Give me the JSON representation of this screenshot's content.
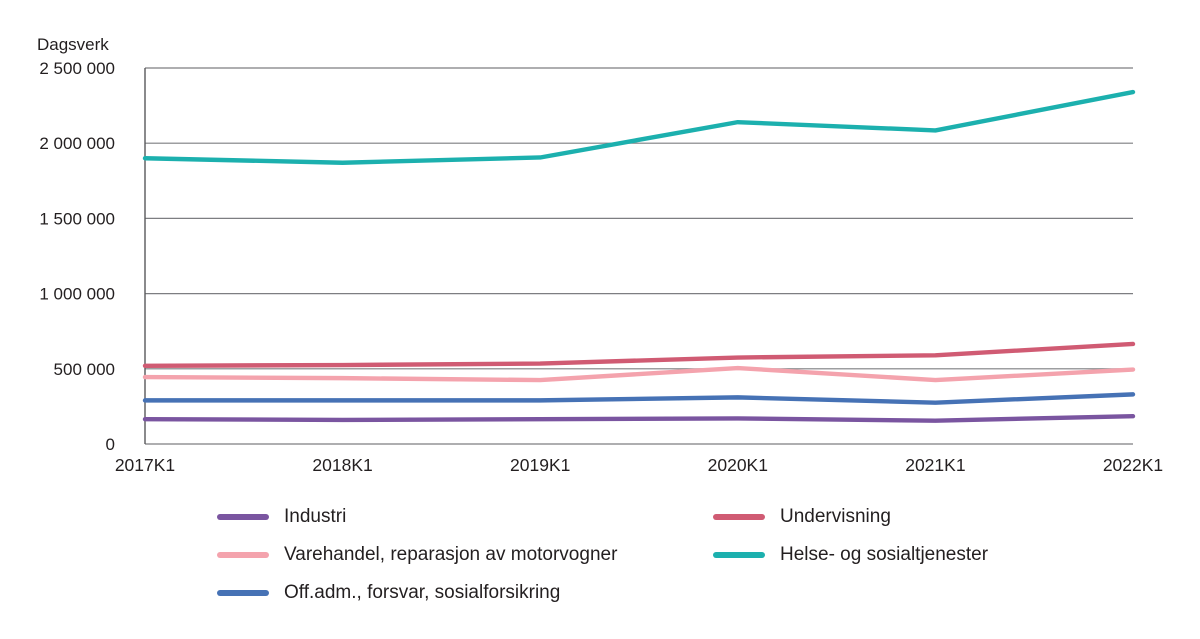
{
  "chart_data": {
    "type": "line",
    "title": "",
    "ylabel": "Dagsverk",
    "xlabel": "",
    "categories": [
      "2017K1",
      "2018K1",
      "2019K1",
      "2020K1",
      "2021K1",
      "2022K1"
    ],
    "ylim": [
      0,
      2500000
    ],
    "grid": true,
    "legend_position": "bottom, two columns",
    "yticks": [
      {
        "value": 0,
        "label": "0"
      },
      {
        "value": 500000,
        "label": "500 000"
      },
      {
        "value": 1000000,
        "label": "1 000 000"
      },
      {
        "value": 1500000,
        "label": "1 500 000"
      },
      {
        "value": 2000000,
        "label": "2 000 000"
      },
      {
        "value": 2500000,
        "label": "2 500 000"
      }
    ],
    "series": [
      {
        "name": "Industri",
        "color": "#7a55a0",
        "values": [
          165000,
          160000,
          165000,
          170000,
          155000,
          185000
        ]
      },
      {
        "name": "Varehandel, reparasjon av motorvogner",
        "color": "#f4a3ad",
        "values": [
          445000,
          438000,
          425000,
          505000,
          425000,
          495000
        ]
      },
      {
        "name": "Off.adm., forsvar, sosialforsikring",
        "color": "#4672b5",
        "values": [
          290000,
          290000,
          290000,
          310000,
          275000,
          330000
        ]
      },
      {
        "name": "Undervisning",
        "color": "#d05b73",
        "values": [
          520000,
          525000,
          535000,
          575000,
          590000,
          665000
        ]
      },
      {
        "name": "Helse- og sosialtjenester",
        "color": "#1cb0ae",
        "values": [
          1900000,
          1870000,
          1905000,
          2140000,
          2085000,
          2340000
        ]
      }
    ],
    "legend_columns": [
      [
        0,
        1,
        2
      ],
      [
        3,
        4
      ]
    ]
  },
  "colors": {
    "background": "#ffffff",
    "axis": "#58595b",
    "grid": "#7d7e81",
    "text": "#231f20"
  }
}
